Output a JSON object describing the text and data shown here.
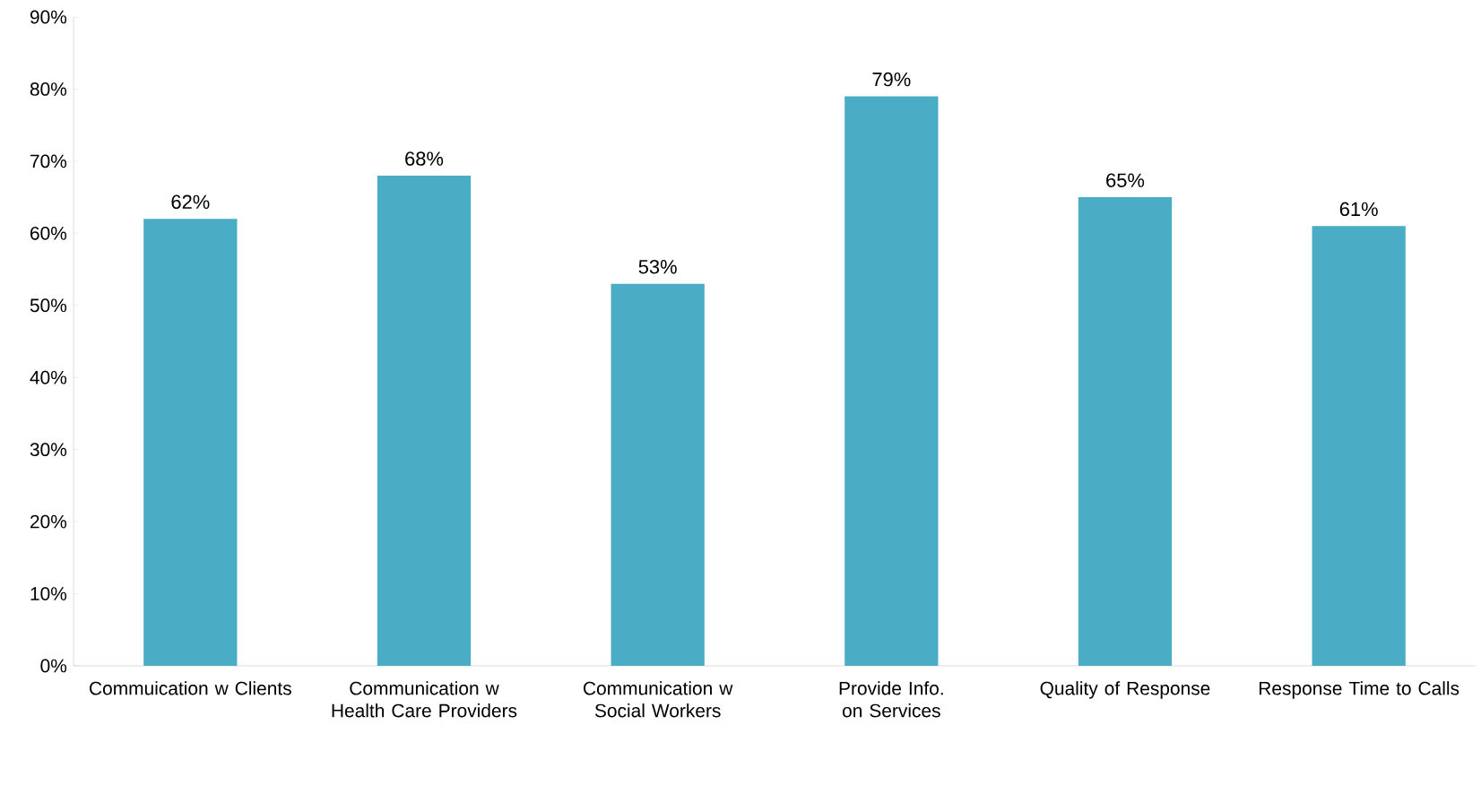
{
  "chart_data": {
    "type": "bar",
    "categories": [
      "Commuication w Clients",
      "Communication w Health Care Providers",
      "Communication w Social Workers",
      "Provide Info. on Services",
      "Quality of Response",
      "Response Time to Calls"
    ],
    "values": [
      62,
      68,
      53,
      79,
      65,
      61
    ],
    "value_labels": [
      "62%",
      "68%",
      "53%",
      "79%",
      "65%",
      "61%"
    ],
    "color": "#4bacc6",
    "ylim": [
      0,
      90
    ],
    "yticks": [
      {
        "value": 0,
        "label": "0%"
      },
      {
        "value": 10,
        "label": "10%"
      },
      {
        "value": 20,
        "label": "20%"
      },
      {
        "value": 30,
        "label": "30%"
      },
      {
        "value": 40,
        "label": "40%"
      },
      {
        "value": 50,
        "label": "50%"
      },
      {
        "value": 60,
        "label": "60%"
      },
      {
        "value": 70,
        "label": "70%"
      },
      {
        "value": 80,
        "label": "80%"
      },
      {
        "value": 90,
        "label": "90%"
      }
    ],
    "grid": false
  }
}
